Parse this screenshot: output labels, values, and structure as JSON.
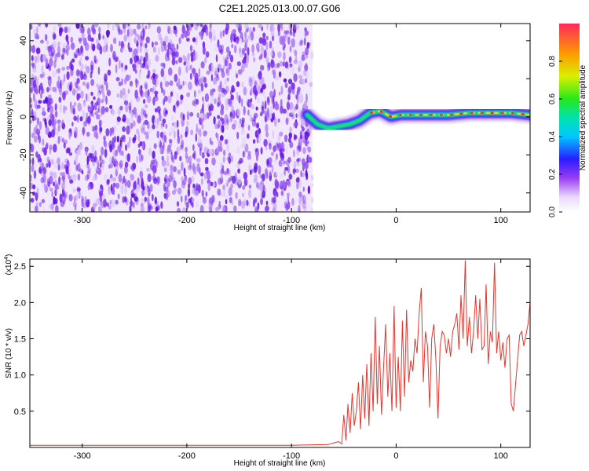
{
  "figure": {
    "title": "C2E1.2025.013.00.07.G06"
  },
  "colors": {
    "snr_line": "#e8352e",
    "axis": "#000000",
    "noise_purple": "#7b2ff0",
    "noise_light": "#d9c6f7"
  },
  "chart_data": [
    {
      "type": "heatmap",
      "title": "C2E1.2025.013.00.07.G06",
      "xlabel": "Height of straight line (km)",
      "ylabel": "Frequency (Hz)",
      "xlim": [
        -350,
        128
      ],
      "ylim": [
        -50,
        49
      ],
      "x_ticks": [
        -300,
        -200,
        -100,
        0,
        100
      ],
      "y_ticks": [
        -40,
        -20,
        0,
        20,
        40
      ],
      "colorbar": {
        "label": "Normalized spectral amplitude",
        "range": [
          0.0,
          1.0
        ],
        "ticks": [
          "0.0",
          "0.2",
          "0.4",
          "0.6",
          "0.8"
        ],
        "colormap": "rainbow"
      },
      "noise_region_x": [
        -350,
        -80
      ],
      "signal_trace": {
        "x": [
          -85,
          -75,
          -65,
          -55,
          -45,
          -35,
          -25,
          -15,
          -5,
          5,
          15,
          30,
          50,
          70,
          90,
          110,
          128
        ],
        "frequency": [
          1,
          -4,
          -6,
          -5,
          -4,
          -2,
          2,
          3,
          0,
          1,
          1,
          1,
          1,
          2,
          2,
          2,
          1
        ]
      }
    },
    {
      "type": "line",
      "title": "",
      "xlabel": "Height of straight line (km)",
      "ylabel": "SNR (10 * v/v)",
      "y_multiplier": "(x10",
      "y_multiplier_exp": "4",
      "y_multiplier_close": ")",
      "xlim": [
        -350,
        128
      ],
      "ylim": [
        0,
        2.6
      ],
      "x_ticks": [
        -300,
        -200,
        -100,
        0,
        100
      ],
      "y_ticks": [
        "0.5",
        "1.0",
        "1.5",
        "2.0",
        "2.5"
      ],
      "series": [
        {
          "x": [
            -350,
            -300,
            -250,
            -200,
            -150,
            -100,
            -65,
            -55,
            -52,
            -50,
            -48,
            -46,
            -44,
            -42,
            -40,
            -38,
            -36,
            -34,
            -32,
            -30,
            -28,
            -26,
            -24,
            -22,
            -20,
            -18,
            -16,
            -14,
            -12,
            -10,
            -8,
            -6,
            -4,
            -2,
            0,
            2,
            4,
            6,
            8,
            10,
            12,
            14,
            16,
            18,
            20,
            22,
            24,
            26,
            28,
            30,
            32,
            34,
            36,
            38,
            40,
            42,
            44,
            46,
            48,
            50,
            52,
            54,
            56,
            58,
            60,
            62,
            64,
            66,
            68,
            70,
            72,
            74,
            76,
            78,
            80,
            82,
            84,
            86,
            88,
            90,
            92,
            94,
            96,
            98,
            100,
            102,
            104,
            106,
            108,
            110,
            112,
            114,
            116,
            118,
            120,
            122,
            124,
            126,
            128
          ],
          "values": [
            0.03,
            0.03,
            0.03,
            0.03,
            0.03,
            0.03,
            0.04,
            0.08,
            0.05,
            0.45,
            0.1,
            0.6,
            0.2,
            0.75,
            0.3,
            0.5,
            0.9,
            0.25,
            1.0,
            0.4,
            1.15,
            0.3,
            1.3,
            0.5,
            1.8,
            0.6,
            1.4,
            0.45,
            1.1,
            1.7,
            0.7,
            1.3,
            0.5,
            1.95,
            0.55,
            1.25,
            0.5,
            1.75,
            0.7,
            1.9,
            0.9,
            1.2,
            1.05,
            1.5,
            1.3,
            1.85,
            2.2,
            0.9,
            1.6,
            1.4,
            0.55,
            1.5,
            1.7,
            1.2,
            0.4,
            1.4,
            1.6,
            1.55,
            1.3,
            1.5,
            1.25,
            1.6,
            1.7,
            1.85,
            1.35,
            2.1,
            1.5,
            2.58,
            1.4,
            1.8,
            1.3,
            1.6,
            2.1,
            1.5,
            2.05,
            1.35,
            1.4,
            2.25,
            1.15,
            1.6,
            1.45,
            2.55,
            1.3,
            1.6,
            1.2,
            1.45,
            1.1,
            1.5,
            1.55,
            0.6,
            0.5,
            0.85,
            1.2,
            1.55,
            1.6,
            1.4,
            1.55,
            1.7,
            2.0
          ]
        }
      ]
    }
  ]
}
